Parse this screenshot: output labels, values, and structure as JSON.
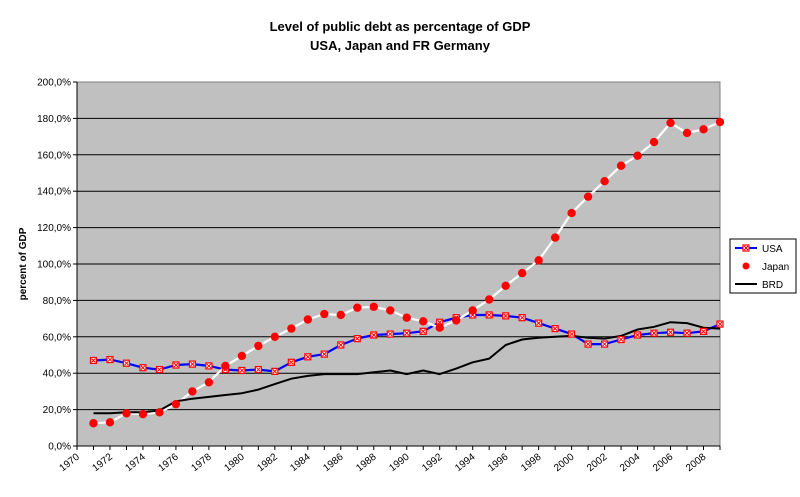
{
  "chart_data": {
    "type": "line",
    "title": "Level of public debt as percentage of GDP",
    "subtitle": "USA, Japan and FR Germany",
    "xlabel": "",
    "ylabel": "percent of GDP",
    "xlim": [
      1970,
      2009
    ],
    "ylim": [
      0,
      200
    ],
    "y_ticks": [
      "0,0%",
      "20,0%",
      "40,0%",
      "60,0%",
      "80,0%",
      "100,0%",
      "120,0%",
      "140,0%",
      "160,0%",
      "180,0%",
      "200,0%"
    ],
    "x_ticks": [
      "1970",
      "1972",
      "1974",
      "1976",
      "1978",
      "1980",
      "1982",
      "1984",
      "1986",
      "1988",
      "1990",
      "1992",
      "1994",
      "1996",
      "1998",
      "2000",
      "2002",
      "2004",
      "2006",
      "2008"
    ],
    "grid": true,
    "legend_position": "right",
    "plot_background": "#c0c0c0",
    "series": [
      {
        "name": "USA",
        "color": "#0000ff",
        "marker": "square-x",
        "marker_color": "#ff0000",
        "x": [
          1971,
          1972,
          1973,
          1974,
          1975,
          1976,
          1977,
          1978,
          1979,
          1980,
          1981,
          1982,
          1983,
          1984,
          1985,
          1986,
          1987,
          1988,
          1989,
          1990,
          1991,
          1992,
          1993,
          1994,
          1995,
          1996,
          1997,
          1998,
          1999,
          2000,
          2001,
          2002,
          2003,
          2004,
          2005,
          2006,
          2007,
          2008,
          2009
        ],
        "values": [
          47,
          47.5,
          45.5,
          43,
          42,
          44.5,
          45,
          44,
          42,
          41.5,
          42,
          41,
          46,
          49,
          50.5,
          55.5,
          59,
          61,
          61.5,
          62,
          63,
          68,
          70.5,
          72,
          72,
          71.5,
          70.5,
          67.5,
          64.5,
          61.5,
          56,
          56,
          58.5,
          61,
          62,
          62.5,
          62,
          63,
          67
        ]
      },
      {
        "name": "Japan",
        "color": "#ff0000",
        "line_color": "#ffffff",
        "marker": "circle",
        "x": [
          1971,
          1972,
          1973,
          1974,
          1975,
          1976,
          1977,
          1978,
          1979,
          1980,
          1981,
          1982,
          1983,
          1984,
          1985,
          1986,
          1987,
          1988,
          1989,
          1990,
          1991,
          1992,
          1993,
          1994,
          1995,
          1996,
          1997,
          1998,
          1999,
          2000,
          2001,
          2002,
          2003,
          2004,
          2005,
          2006,
          2007,
          2008,
          2009
        ],
        "values": [
          12.5,
          13,
          18,
          17.5,
          18.5,
          23,
          30,
          35,
          44,
          49.5,
          55,
          60,
          64.5,
          69.5,
          72.5,
          72,
          76,
          76.5,
          74.5,
          70.5,
          68.5,
          65,
          69,
          74.5,
          80.5,
          88,
          95,
          102,
          114.5,
          128,
          137,
          145.5,
          154,
          159.5,
          167,
          177.5,
          172,
          174,
          178
        ]
      },
      {
        "name": "BRD",
        "color": "#000000",
        "marker": "none",
        "x": [
          1971,
          1972,
          1973,
          1974,
          1975,
          1976,
          1977,
          1978,
          1979,
          1980,
          1981,
          1982,
          1983,
          1984,
          1985,
          1986,
          1987,
          1988,
          1989,
          1990,
          1991,
          1992,
          1993,
          1994,
          1995,
          1996,
          1997,
          1998,
          1999,
          2000,
          2001,
          2002,
          2003,
          2004,
          2005,
          2006,
          2007,
          2008,
          2009
        ],
        "values": [
          18,
          18,
          18.5,
          18.5,
          19.5,
          24.5,
          26,
          27,
          28,
          29,
          31,
          34,
          37,
          38.5,
          39.5,
          39.5,
          39.5,
          40.5,
          41.5,
          39.5,
          41.5,
          39.5,
          42.5,
          46,
          48,
          55.5,
          58.5,
          59.5,
          60,
          60.5,
          59.5,
          59,
          60.5,
          64,
          65.5,
          68,
          67.5,
          65,
          64.5
        ]
      }
    ]
  }
}
